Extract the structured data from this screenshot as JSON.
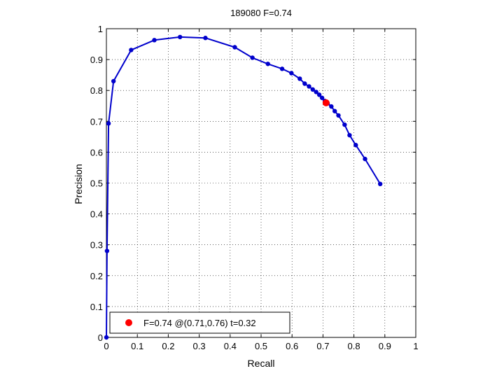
{
  "chart_data": {
    "type": "line",
    "title": "189080 F=0.74",
    "xlabel": "Recall",
    "ylabel": "Precision",
    "xlim": [
      0,
      1
    ],
    "ylim": [
      0,
      1
    ],
    "grid": true,
    "x_ticks": [
      0,
      0.1,
      0.2,
      0.3,
      0.4,
      0.5,
      0.6,
      0.7,
      0.8,
      0.9,
      1
    ],
    "y_ticks": [
      0,
      0.1,
      0.2,
      0.3,
      0.4,
      0.5,
      0.6,
      0.7,
      0.8,
      0.9,
      1
    ],
    "x_tick_labels": [
      "0",
      "0.1",
      "0.2",
      "0.3",
      "0.4",
      "0.5",
      "0.6",
      "0.7",
      "0.8",
      "0.9",
      "1"
    ],
    "y_tick_labels": [
      "0",
      "0.1",
      "0.2",
      "0.3",
      "0.4",
      "0.5",
      "0.6",
      "0.7",
      "0.8",
      "0.9",
      "1"
    ],
    "series": [
      {
        "color": "#0000cc",
        "x": [
          0,
          0.002,
          0.007,
          0.023,
          0.08,
          0.155,
          0.238,
          0.32,
          0.415,
          0.472,
          0.522,
          0.568,
          0.598,
          0.625,
          0.641,
          0.655,
          0.667,
          0.678,
          0.688,
          0.697,
          0.706,
          0.715,
          0.727,
          0.738,
          0.75,
          0.77,
          0.786,
          0.806,
          0.836,
          0.885
        ],
        "y": [
          0.0,
          0.28,
          0.693,
          0.83,
          0.931,
          0.963,
          0.973,
          0.97,
          0.94,
          0.906,
          0.886,
          0.87,
          0.856,
          0.838,
          0.822,
          0.813,
          0.803,
          0.795,
          0.786,
          0.776,
          0.766,
          0.758,
          0.748,
          0.733,
          0.719,
          0.689,
          0.655,
          0.623,
          0.578,
          0.497
        ]
      }
    ],
    "highlight_point": {
      "x": 0.71,
      "y": 0.76,
      "color": "#ff0000"
    },
    "legend": {
      "position": "bottom-left",
      "entries": [
        {
          "label": "F=0.74 @(0.71,0.76) t=0.32",
          "color": "#ff0000"
        }
      ]
    }
  }
}
